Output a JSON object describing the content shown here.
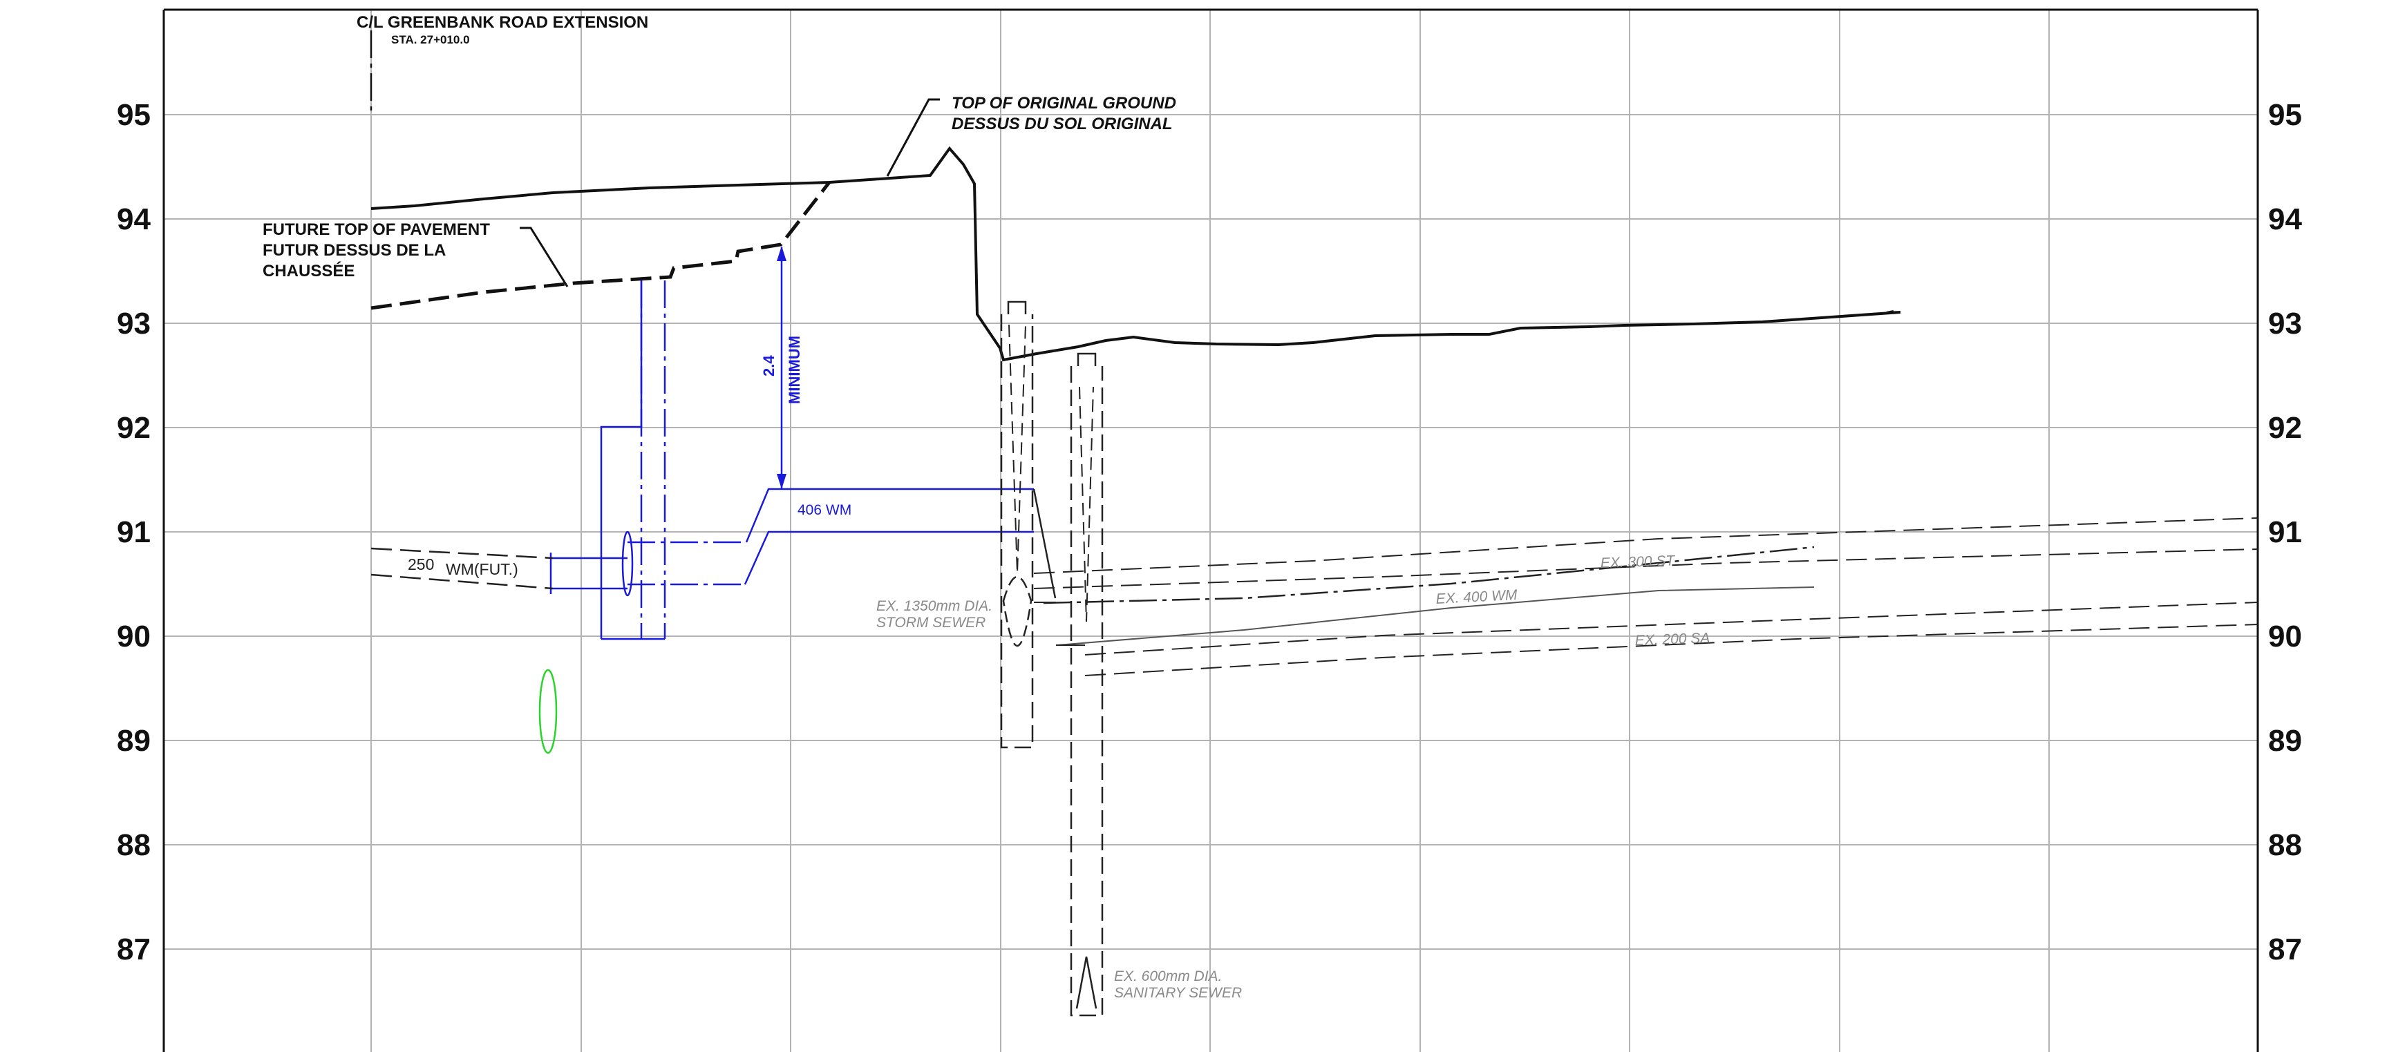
{
  "elevation_labels": [
    "95",
    "94",
    "93",
    "92",
    "91",
    "90",
    "89",
    "88",
    "87"
  ],
  "labels": {
    "centerline": "C/L GREENBANK ROAD EXTENSION",
    "station": "STA. 27+010.0",
    "original_ground_1": "TOP OF ORIGINAL GROUND",
    "original_ground_2": "DESSUS DU SOL ORIGINAL",
    "pavement_1": "FUTURE TOP OF PAVEMENT",
    "pavement_2": "FUTUR DESSUS DE LA",
    "pavement_3": "CHAUSSÉE",
    "clearance_value": "2.4",
    "clearance_text": "MINIMUM",
    "watermain": "406 WM",
    "future_wm_size": "250",
    "future_wm_text": "WM(FUT.)",
    "storm_1": "EX. 1350mm DIA.",
    "storm_2": "STORM SEWER",
    "sanitary_1": "EX. 600mm DIA.",
    "sanitary_2": "SANITARY SEWER",
    "ex_st": "EX. 300 ST",
    "ex_wm": "EX. 400 WM",
    "ex_sa": "EX. 200 SA"
  },
  "colors": {
    "proposed": "#1a1add",
    "existing": "#8a8a8a",
    "ground": "#111111",
    "grid": "#b3b3b3",
    "marker": "#2bd42b"
  }
}
